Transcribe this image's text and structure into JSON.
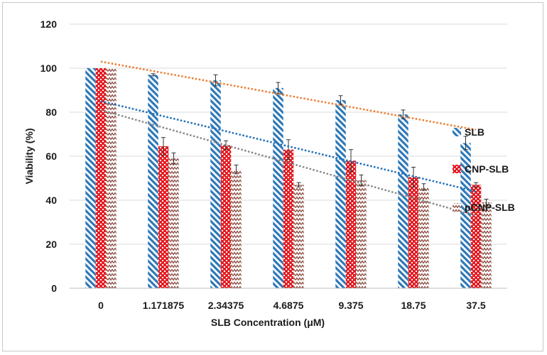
{
  "chart_data": {
    "type": "bar",
    "title": "",
    "xlabel": "SLB Concentration (μM)",
    "ylabel": "Viability (%)",
    "ylim": [
      0,
      120
    ],
    "yticks": [
      "0",
      "20",
      "40",
      "60",
      "80",
      "100",
      "120"
    ],
    "categories": [
      "0",
      "1.171875",
      "2.34375",
      "4.6875",
      "9.375",
      "18.75",
      "37.5"
    ],
    "grid": "horizontal",
    "legend_position": "right",
    "series": [
      {
        "name": "SLB",
        "values": [
          100,
          97,
          94.5,
          91,
          85.5,
          79,
          66
        ],
        "errors": [
          0,
          0.5,
          2.5,
          2.5,
          2,
          2,
          3
        ],
        "color": "#2e78b7",
        "pattern": "diagonal-stripes"
      },
      {
        "name": "CNP-SLB",
        "values": [
          100,
          64.5,
          65,
          63,
          58,
          50.5,
          47
        ],
        "errors": [
          0,
          4,
          2,
          4.5,
          5,
          4.5,
          1
        ],
        "color": "#e41f26",
        "pattern": "checker"
      },
      {
        "name": "pCNP-SLB",
        "values": [
          100,
          59,
          54,
          47,
          49,
          46,
          39
        ],
        "errors": [
          0,
          2.5,
          2,
          1,
          2.5,
          1.5,
          1.5
        ],
        "color": "#8a4a3e",
        "pattern": "zigzag"
      }
    ],
    "trendlines": [
      {
        "series": "SLB",
        "start": 103,
        "end": 72,
        "color": "#ed7d31"
      },
      {
        "series": "CNP-SLB",
        "start": 85,
        "end": 44,
        "color": "#1f6fb8"
      },
      {
        "series": "pCNP-SLB",
        "start": 81,
        "end": 33,
        "color": "#888888"
      }
    ]
  }
}
